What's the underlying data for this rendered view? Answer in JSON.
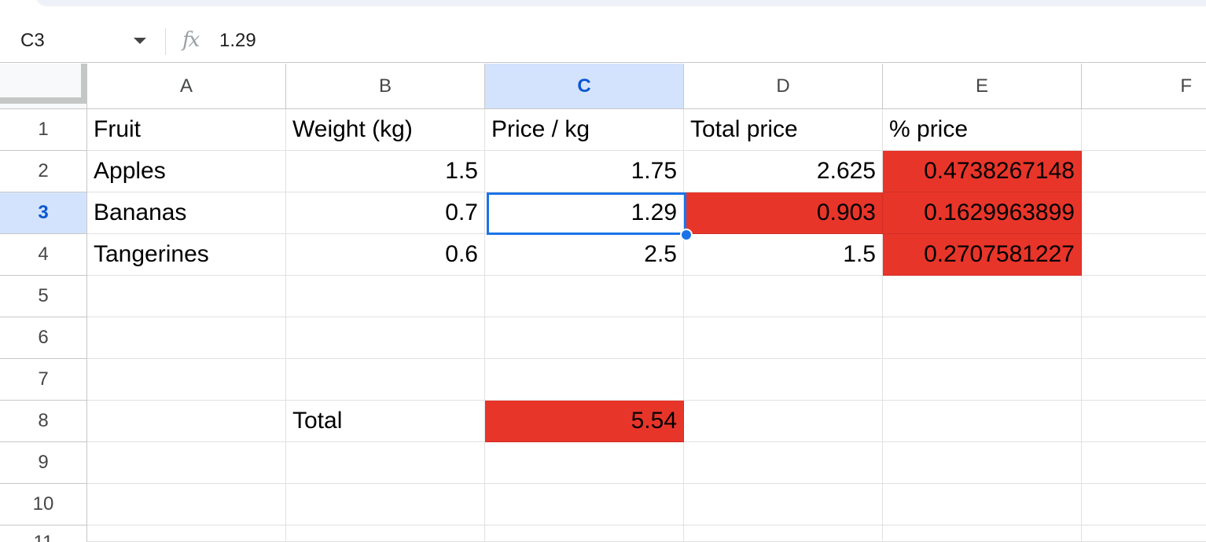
{
  "formula_bar": {
    "name_box": "C3",
    "fx_icon": "fx-icon",
    "value": "1.29"
  },
  "selection": {
    "cell": "C3",
    "column": "C",
    "row": "3"
  },
  "columns": [
    "A",
    "B",
    "C",
    "D",
    "E",
    "F"
  ],
  "rows": [
    "1",
    "2",
    "3",
    "4",
    "5",
    "6",
    "7",
    "8",
    "9",
    "10",
    "11"
  ],
  "cells": {
    "A1": "Fruit",
    "B1": "Weight (kg)",
    "C1": "Price / kg",
    "D1": "Total price",
    "E1": "% price",
    "A2": "Apples",
    "B2": "1.5",
    "C2": "1.75",
    "D2": "2.625",
    "E2": "0.4738267148",
    "A3": "Bananas",
    "B3": "0.7",
    "C3": "1.29",
    "D3": "0.903",
    "E3": "0.1629963899",
    "A4": "Tangerines",
    "B4": "0.6",
    "C4": "2.5",
    "D4": "1.5",
    "E4": "0.2707581227",
    "B8": "Total",
    "C8": "5.54"
  },
  "highlight_color": "#e8352a",
  "selection_color": "#1a73e8"
}
